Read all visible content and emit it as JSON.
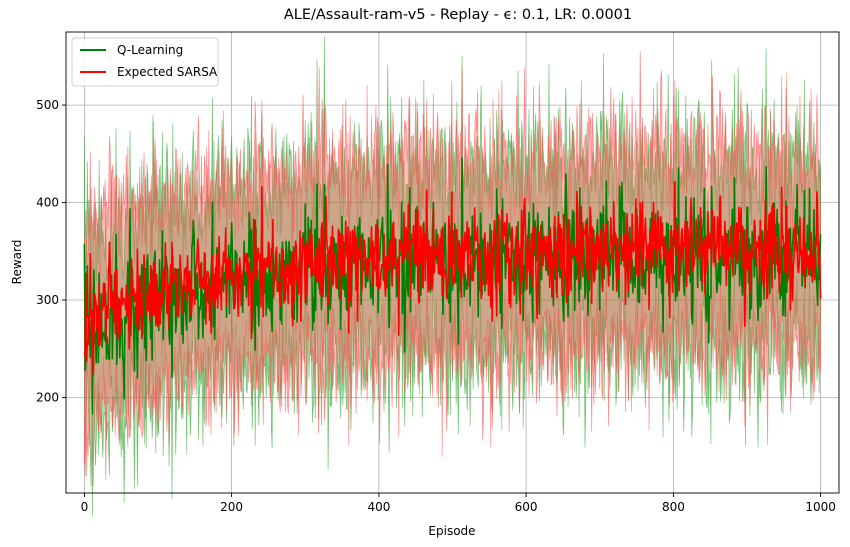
{
  "chart_data": {
    "type": "line",
    "title": "ALE/Assault-ram-v5 - Replay - ϵ: 0.1, LR: 0.0001",
    "xlabel": "Episode",
    "ylabel": "Reward",
    "xlim": [
      -25,
      1025
    ],
    "ylim": [
      102,
      575
    ],
    "xticks": [
      0,
      200,
      400,
      600,
      800,
      1000
    ],
    "yticks": [
      200,
      300,
      400,
      500
    ],
    "grid": true,
    "legend_position": "top-left",
    "episodes": 1000,
    "series": [
      {
        "name": "Q-Learning",
        "color": "#008000",
        "band_color": "#2ca02c",
        "mean_start": 275,
        "mean_end": 345,
        "band_halfwidth": 80,
        "noise": 30,
        "seed": 7
      },
      {
        "name": "Expected SARSA",
        "color": "#ff0000",
        "band_color": "#ff4d4d",
        "mean_start": 278,
        "mean_end": 352,
        "band_halfwidth": 82,
        "noise": 26,
        "seed": 21
      }
    ]
  }
}
